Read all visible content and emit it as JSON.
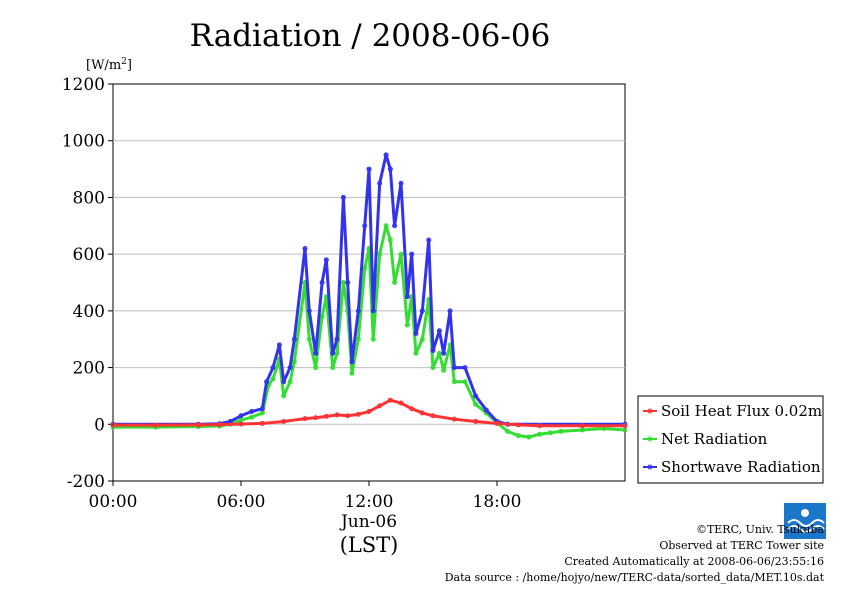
{
  "chart_data": {
    "type": "scatter",
    "title": "Radiation / 2008-06-06",
    "ylabel": "[W/m",
    "ylabel_sup": "2",
    "ylabel_close": "]",
    "xlabel_date": "Jun-06",
    "xlabel_zone": "(LST)",
    "xlim": [
      "00:00",
      "24:00"
    ],
    "ylim": [
      -200,
      1200
    ],
    "y_ticks": [
      "-200",
      "0",
      "200",
      "400",
      "600",
      "800",
      "1000",
      "1200"
    ],
    "x_ticks": [
      "00:00",
      "06:00",
      "12:00",
      "18:00"
    ],
    "grid": true,
    "legend_position": "right",
    "series": [
      {
        "name": "Soil Heat Flux 0.02m",
        "color": "#ff3333",
        "points": [
          [
            0,
            -3
          ],
          [
            2,
            -3
          ],
          [
            4,
            -2
          ],
          [
            5,
            -1
          ],
          [
            6,
            1
          ],
          [
            7,
            3
          ],
          [
            8,
            10
          ],
          [
            9,
            20
          ],
          [
            9.5,
            23
          ],
          [
            10,
            28
          ],
          [
            10.5,
            33
          ],
          [
            11,
            30
          ],
          [
            11.5,
            35
          ],
          [
            12,
            45
          ],
          [
            12.5,
            65
          ],
          [
            13,
            85
          ],
          [
            13.5,
            75
          ],
          [
            14,
            55
          ],
          [
            14.5,
            40
          ],
          [
            15,
            30
          ],
          [
            16,
            18
          ],
          [
            17,
            10
          ],
          [
            18,
            3
          ],
          [
            19,
            -2
          ],
          [
            20,
            -5
          ],
          [
            22,
            -5
          ],
          [
            24,
            -5
          ]
        ]
      },
      {
        "name": "Net Radiation",
        "color": "#33dd33",
        "points": [
          [
            0,
            -10
          ],
          [
            2,
            -10
          ],
          [
            4,
            -8
          ],
          [
            5,
            -6
          ],
          [
            5.5,
            0
          ],
          [
            6,
            15
          ],
          [
            6.5,
            25
          ],
          [
            7,
            40
          ],
          [
            7.3,
            140
          ],
          [
            7.5,
            160
          ],
          [
            7.8,
            230
          ],
          [
            8,
            100
          ],
          [
            8.3,
            150
          ],
          [
            8.5,
            220
          ],
          [
            9,
            500
          ],
          [
            9.2,
            300
          ],
          [
            9.5,
            200
          ],
          [
            9.8,
            380
          ],
          [
            10,
            450
          ],
          [
            10.3,
            200
          ],
          [
            10.5,
            250
          ],
          [
            10.8,
            500
          ],
          [
            11,
            400
          ],
          [
            11.2,
            180
          ],
          [
            11.5,
            300
          ],
          [
            11.8,
            550
          ],
          [
            12,
            620
          ],
          [
            12.2,
            300
          ],
          [
            12.5,
            600
          ],
          [
            12.8,
            700
          ],
          [
            13,
            650
          ],
          [
            13.2,
            500
          ],
          [
            13.5,
            600
          ],
          [
            13.8,
            350
          ],
          [
            14,
            450
          ],
          [
            14.2,
            250
          ],
          [
            14.5,
            300
          ],
          [
            14.8,
            440
          ],
          [
            15,
            200
          ],
          [
            15.3,
            250
          ],
          [
            15.5,
            190
          ],
          [
            15.8,
            280
          ],
          [
            16,
            150
          ],
          [
            16.5,
            150
          ],
          [
            17,
            70
          ],
          [
            17.5,
            40
          ],
          [
            18,
            5
          ],
          [
            18.5,
            -25
          ],
          [
            19,
            -40
          ],
          [
            19.5,
            -45
          ],
          [
            20,
            -35
          ],
          [
            20.5,
            -30
          ],
          [
            21,
            -25
          ],
          [
            22,
            -20
          ],
          [
            23,
            -15
          ],
          [
            24,
            -20
          ]
        ]
      },
      {
        "name": "Shortwave Radiation",
        "color": "#3333ee",
        "points": [
          [
            0,
            0
          ],
          [
            4,
            0
          ],
          [
            5,
            2
          ],
          [
            5.5,
            10
          ],
          [
            6,
            30
          ],
          [
            6.5,
            45
          ],
          [
            7,
            55
          ],
          [
            7.2,
            150
          ],
          [
            7.5,
            200
          ],
          [
            7.8,
            280
          ],
          [
            8,
            150
          ],
          [
            8.3,
            200
          ],
          [
            8.5,
            300
          ],
          [
            9,
            620
          ],
          [
            9.2,
            400
          ],
          [
            9.5,
            250
          ],
          [
            9.8,
            500
          ],
          [
            10,
            580
          ],
          [
            10.3,
            250
          ],
          [
            10.5,
            300
          ],
          [
            10.8,
            800
          ],
          [
            11,
            500
          ],
          [
            11.2,
            220
          ],
          [
            11.5,
            400
          ],
          [
            11.8,
            700
          ],
          [
            12,
            900
          ],
          [
            12.2,
            400
          ],
          [
            12.5,
            850
          ],
          [
            12.8,
            950
          ],
          [
            13,
            900
          ],
          [
            13.2,
            700
          ],
          [
            13.5,
            850
          ],
          [
            13.8,
            450
          ],
          [
            14,
            600
          ],
          [
            14.2,
            320
          ],
          [
            14.5,
            400
          ],
          [
            14.8,
            650
          ],
          [
            15,
            260
          ],
          [
            15.3,
            330
          ],
          [
            15.5,
            250
          ],
          [
            15.8,
            400
          ],
          [
            16,
            200
          ],
          [
            16.5,
            200
          ],
          [
            17,
            100
          ],
          [
            17.5,
            50
          ],
          [
            18,
            10
          ],
          [
            18.5,
            0
          ],
          [
            24,
            0
          ]
        ]
      }
    ]
  },
  "credits": {
    "copyright": "©TERC, Univ. Tsukuba",
    "site": "Observed at TERC Tower site",
    "created": "Created Automatically at 2008-06-06/23:55:16",
    "source": "Data source : /home/hojyo/new/TERC-data/sorted_data/MET.10s.dat"
  },
  "logo": {
    "text": "TERC",
    "color": "#1a77c9"
  }
}
